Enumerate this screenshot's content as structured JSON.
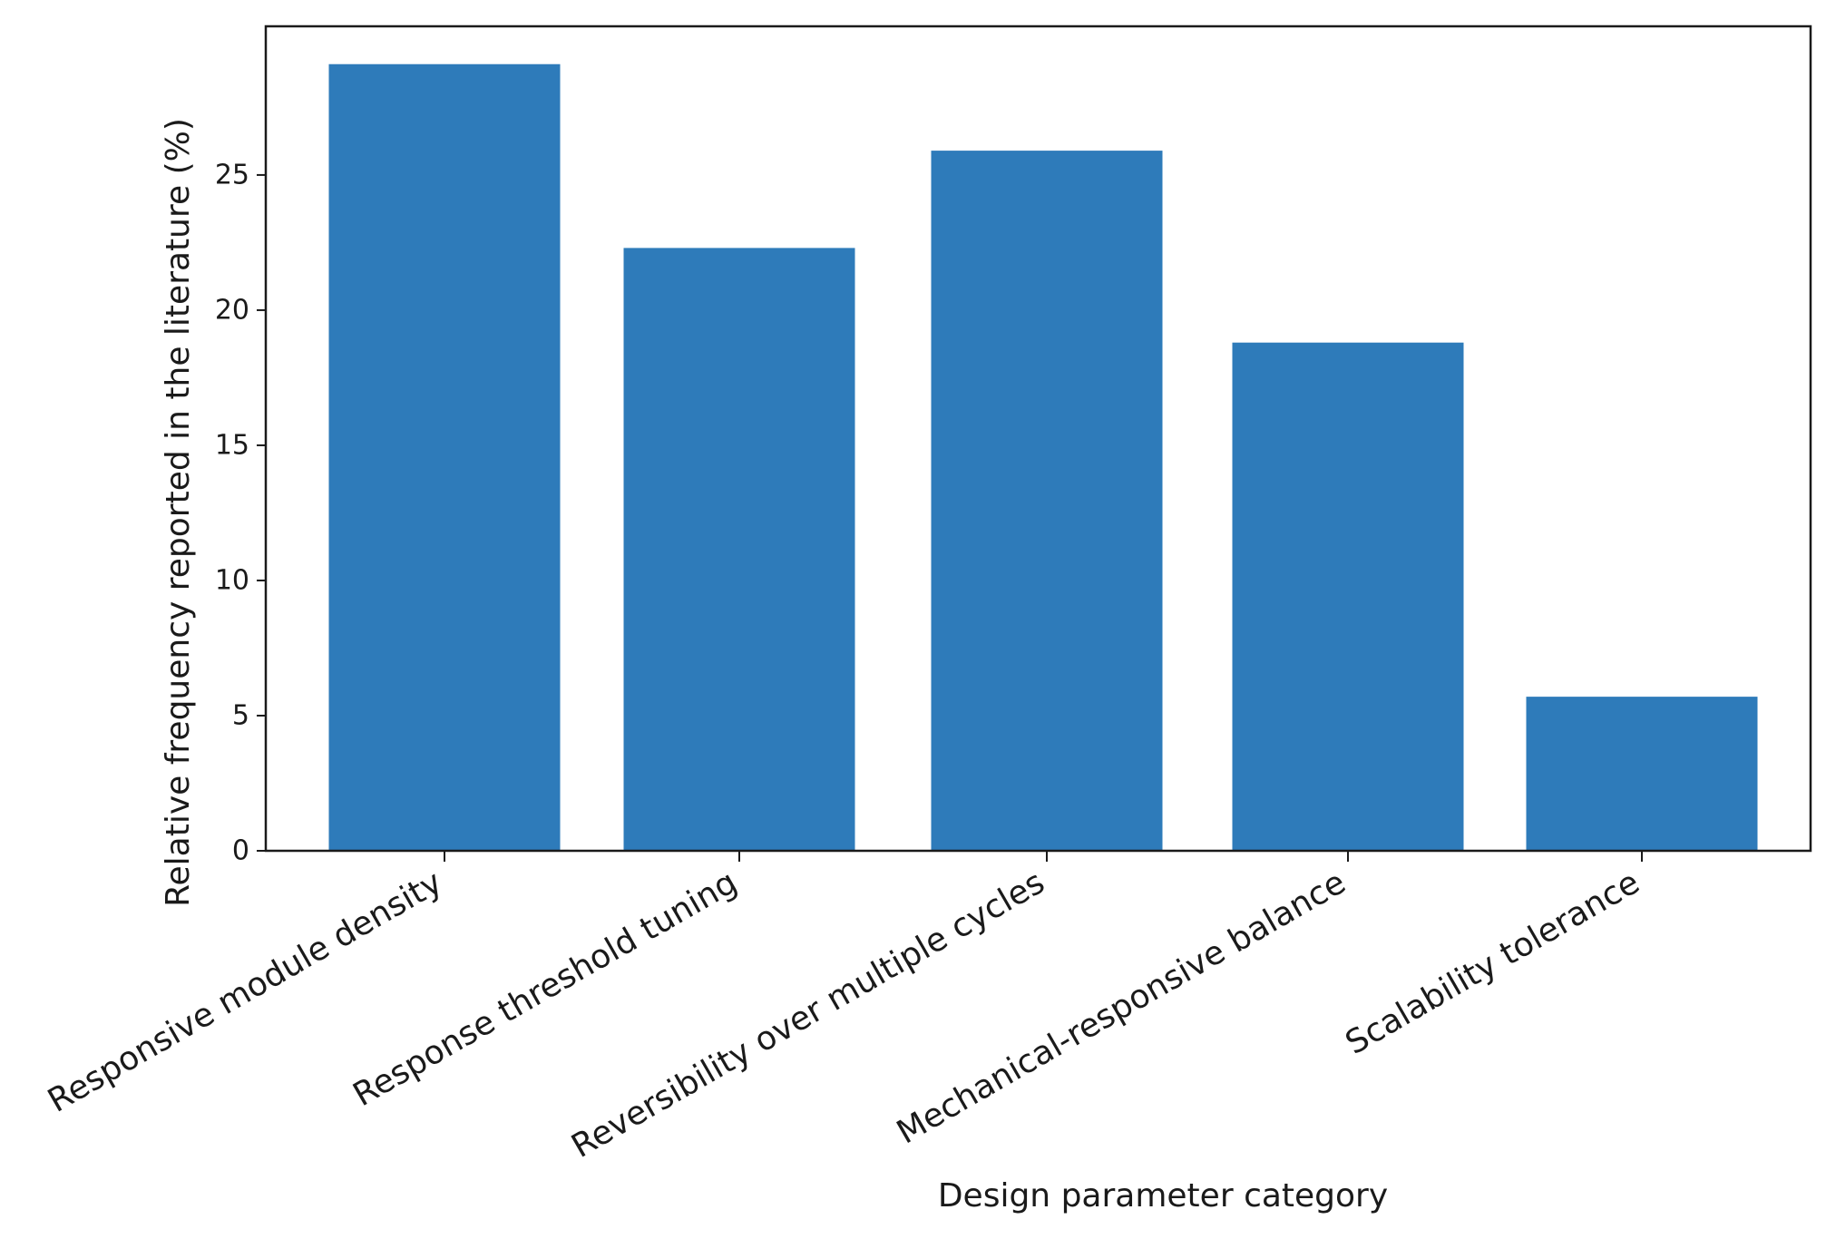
{
  "chart_data": {
    "type": "bar",
    "title": "",
    "xlabel": "Design parameter category",
    "ylabel": "Relative frequency reported in the literature (%)",
    "categories": [
      "Responsive module density",
      "Response threshold tuning",
      "Reversibility over multiple cycles",
      "Mechanical-responsive balance",
      "Scalability tolerance"
    ],
    "values": [
      29.1,
      22.3,
      25.9,
      18.8,
      5.7
    ],
    "ylim": [
      0,
      30.5
    ],
    "yticks": [
      "0",
      "5",
      "10",
      "15",
      "20",
      "25"
    ],
    "grid": false,
    "bar_color": "#2e7bba"
  }
}
